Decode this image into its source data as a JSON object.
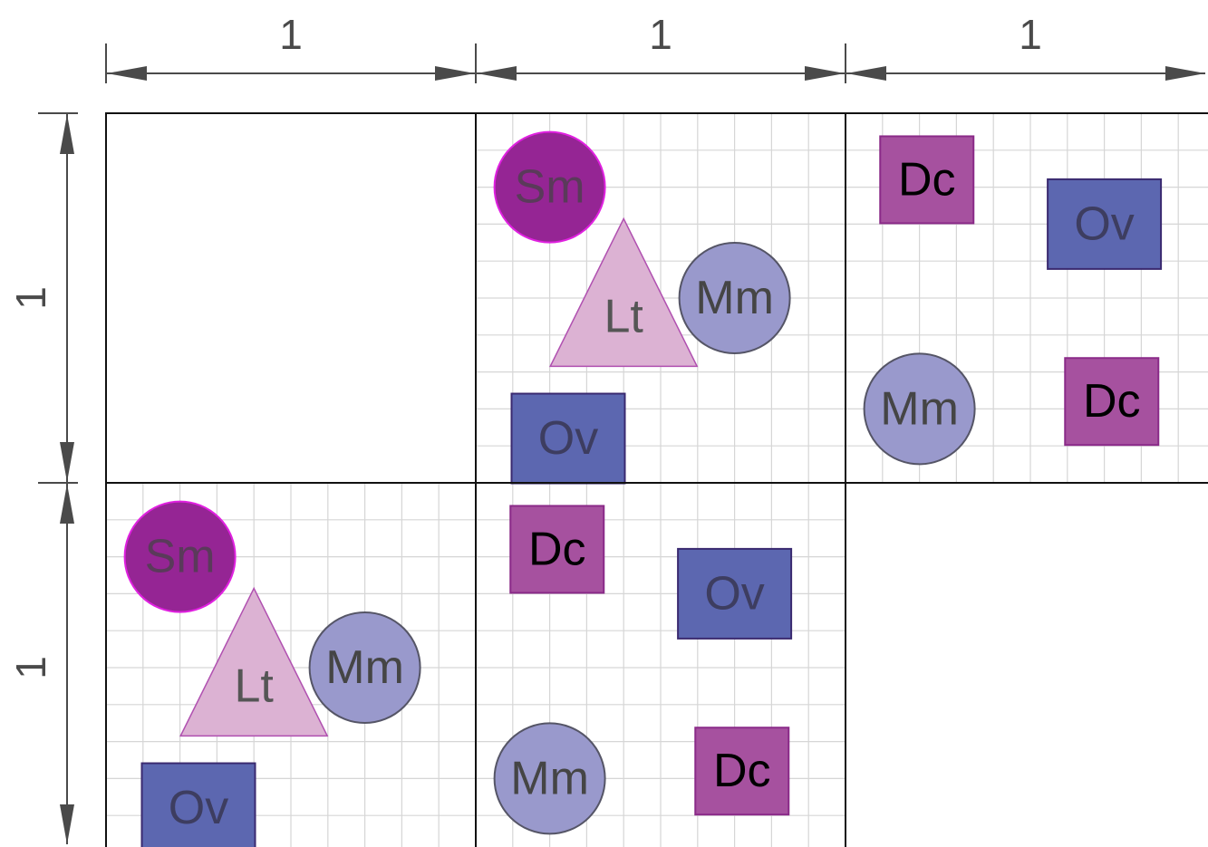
{
  "dimensions": {
    "columns": [
      "1",
      "1",
      "1"
    ],
    "rows": [
      "1",
      "1"
    ]
  },
  "grid": {
    "columns": 3,
    "rows": 2,
    "gridded_cells": [
      "1,0",
      "2,0",
      "0,1",
      "1,1"
    ]
  },
  "colors": {
    "Sm": "#952594",
    "Lt": "#dcb2d3",
    "Mm": "#9999cc",
    "Ov": "#5c67b0",
    "Dc": "#a6519f",
    "frame": "#111111",
    "minor_grid": "#d6d6d6",
    "dimension": "#4a4a4a"
  },
  "shapes": [
    {
      "id": "Sm",
      "label": "Sm",
      "kind": "circle",
      "cell": [
        1,
        0
      ],
      "u": 0.2,
      "v": 0.2
    },
    {
      "id": "Lt",
      "label": "Lt",
      "kind": "triangle",
      "cell": [
        1,
        0
      ],
      "u": 0.4,
      "v": 0.55
    },
    {
      "id": "Mm",
      "label": "Mm",
      "kind": "circle",
      "cell": [
        1,
        0
      ],
      "u": 0.7,
      "v": 0.5
    },
    {
      "id": "Ov",
      "label": "Ov",
      "kind": "rect-wide",
      "cell": [
        1,
        0
      ],
      "u": 0.25,
      "v": 0.88
    },
    {
      "id": "Dc",
      "label": "Dc",
      "kind": "rect",
      "cell": [
        2,
        0
      ],
      "u": 0.22,
      "v": 0.18
    },
    {
      "id": "Ov",
      "label": "Ov",
      "kind": "rect-wide",
      "cell": [
        2,
        0
      ],
      "u": 0.7,
      "v": 0.3
    },
    {
      "id": "Mm",
      "label": "Mm",
      "kind": "circle",
      "cell": [
        2,
        0
      ],
      "u": 0.2,
      "v": 0.8
    },
    {
      "id": "Dc",
      "label": "Dc",
      "kind": "rect",
      "cell": [
        2,
        0
      ],
      "u": 0.72,
      "v": 0.78
    },
    {
      "id": "Sm",
      "label": "Sm",
      "kind": "circle",
      "cell": [
        0,
        1
      ],
      "u": 0.2,
      "v": 0.2
    },
    {
      "id": "Lt",
      "label": "Lt",
      "kind": "triangle",
      "cell": [
        0,
        1
      ],
      "u": 0.4,
      "v": 0.55
    },
    {
      "id": "Mm",
      "label": "Mm",
      "kind": "circle",
      "cell": [
        0,
        1
      ],
      "u": 0.7,
      "v": 0.5
    },
    {
      "id": "Ov",
      "label": "Ov",
      "kind": "rect-wide",
      "cell": [
        0,
        1
      ],
      "u": 0.25,
      "v": 0.88
    },
    {
      "id": "Dc",
      "label": "Dc",
      "kind": "rect",
      "cell": [
        1,
        1
      ],
      "u": 0.22,
      "v": 0.18
    },
    {
      "id": "Ov",
      "label": "Ov",
      "kind": "rect-wide",
      "cell": [
        1,
        1
      ],
      "u": 0.7,
      "v": 0.3
    },
    {
      "id": "Mm",
      "label": "Mm",
      "kind": "circle",
      "cell": [
        1,
        1
      ],
      "u": 0.2,
      "v": 0.8
    },
    {
      "id": "Dc",
      "label": "Dc",
      "kind": "rect",
      "cell": [
        1,
        1
      ],
      "u": 0.72,
      "v": 0.78
    }
  ]
}
